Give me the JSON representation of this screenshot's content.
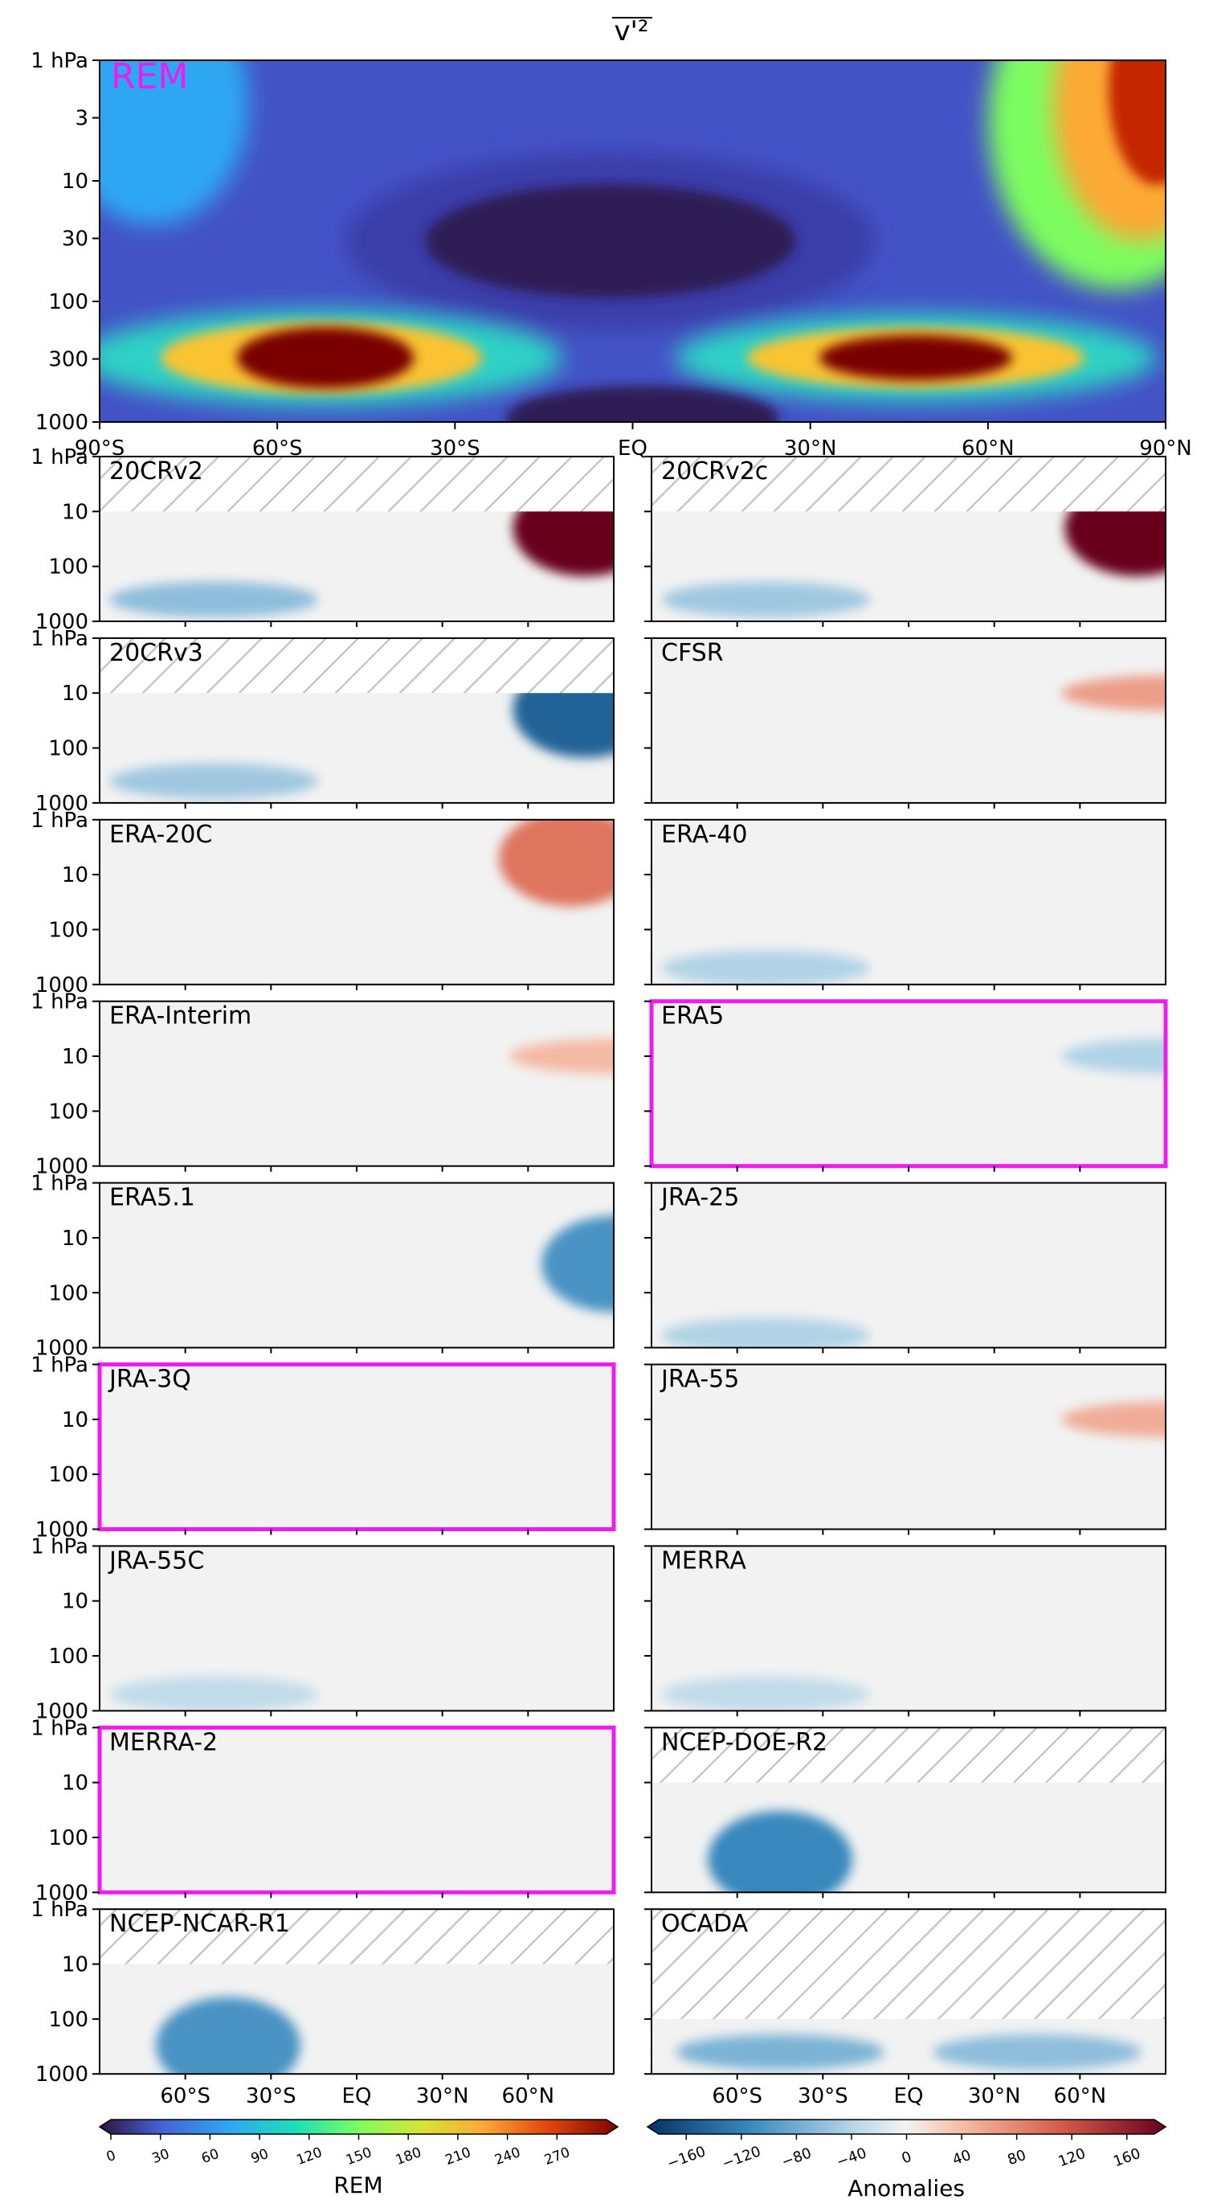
{
  "figure_title": "v'²",
  "chart_data": [
    {
      "type": "heatmap",
      "title": "REM",
      "x_ticks": [
        "90°S",
        "60°S",
        "30°S",
        "EQ",
        "30°N",
        "60°N",
        "90°N"
      ],
      "y_ticks": [
        "1 hPa",
        "3",
        "10",
        "30",
        "100",
        "300",
        "1000"
      ],
      "y_scale": "log",
      "colorbar": {
        "label": "REM",
        "ticks": [
          "0",
          "30",
          "60",
          "90",
          "120",
          "150",
          "180",
          "210",
          "240",
          "270"
        ],
        "range": [
          0,
          300
        ]
      },
      "features": [
        {
          "lat": -60,
          "pressure_hPa": 300,
          "value": 300
        },
        {
          "lat": 40,
          "pressure_hPa": 300,
          "value": 290
        },
        {
          "lat": 90,
          "pressure_hPa": 3,
          "value": 270
        },
        {
          "lat": 0,
          "pressure_hPa": 30,
          "value": 10
        }
      ]
    },
    {
      "type": "heatmap",
      "panel_type": "anomaly",
      "y_ticks": [
        "1 hPa",
        "10",
        "100",
        "1000"
      ],
      "x_ticks": [
        "60°S",
        "30°S",
        "EQ",
        "30°N",
        "60°N"
      ],
      "colorbar": {
        "label": "Anomalies",
        "ticks": [
          "−160",
          "−120",
          "−80",
          "−40",
          "0",
          "40",
          "80",
          "120",
          "160"
        ],
        "range": [
          -180,
          180
        ]
      },
      "panels": [
        {
          "name": "20CRv2",
          "highlight": false,
          "hatch_top_hPa": 10,
          "features": [
            {
              "lat": -50,
              "pressure_hPa": 400,
              "value": -60
            },
            {
              "lat": 80,
              "pressure_hPa": 20,
              "value": 180
            }
          ]
        },
        {
          "name": "20CRv2c",
          "highlight": false,
          "hatch_top_hPa": 10,
          "features": [
            {
              "lat": -50,
              "pressure_hPa": 400,
              "value": -50
            },
            {
              "lat": 80,
              "pressure_hPa": 20,
              "value": 180
            }
          ]
        },
        {
          "name": "20CRv3",
          "highlight": false,
          "hatch_top_hPa": 10,
          "features": [
            {
              "lat": -50,
              "pressure_hPa": 400,
              "value": -50
            },
            {
              "lat": 80,
              "pressure_hPa": 20,
              "value": -140
            }
          ]
        },
        {
          "name": "CFSR",
          "highlight": false,
          "hatch_top_hPa": null,
          "features": [
            {
              "lat": 90,
              "pressure_hPa": 10,
              "value": 60
            }
          ]
        },
        {
          "name": "ERA-20C",
          "highlight": false,
          "hatch_top_hPa": null,
          "features": [
            {
              "lat": 75,
              "pressure_hPa": 5,
              "value": 90
            }
          ]
        },
        {
          "name": "ERA-40",
          "highlight": false,
          "hatch_top_hPa": null,
          "features": [
            {
              "lat": -50,
              "pressure_hPa": 500,
              "value": -40
            }
          ]
        },
        {
          "name": "ERA-Interim",
          "highlight": false,
          "hatch_top_hPa": null,
          "features": [
            {
              "lat": 90,
              "pressure_hPa": 10,
              "value": 40
            }
          ]
        },
        {
          "name": "ERA5",
          "highlight": true,
          "hatch_top_hPa": null,
          "features": [
            {
              "lat": 90,
              "pressure_hPa": 10,
              "value": -40
            }
          ]
        },
        {
          "name": "ERA5.1",
          "highlight": false,
          "hatch_top_hPa": null,
          "features": [
            {
              "lat": 90,
              "pressure_hPa": 30,
              "value": -100
            }
          ]
        },
        {
          "name": "JRA-25",
          "highlight": false,
          "hatch_top_hPa": null,
          "features": [
            {
              "lat": -50,
              "pressure_hPa": 600,
              "value": -40
            }
          ]
        },
        {
          "name": "JRA-3Q",
          "highlight": true,
          "hatch_top_hPa": null,
          "features": []
        },
        {
          "name": "JRA-55",
          "highlight": false,
          "hatch_top_hPa": null,
          "features": [
            {
              "lat": 90,
              "pressure_hPa": 10,
              "value": 50
            }
          ]
        },
        {
          "name": "JRA-55C",
          "highlight": false,
          "hatch_top_hPa": null,
          "features": [
            {
              "lat": -50,
              "pressure_hPa": 500,
              "value": -30
            }
          ]
        },
        {
          "name": "MERRA",
          "highlight": false,
          "hatch_top_hPa": null,
          "features": [
            {
              "lat": -50,
              "pressure_hPa": 500,
              "value": -30
            }
          ]
        },
        {
          "name": "MERRA-2",
          "highlight": true,
          "hatch_top_hPa": null,
          "features": []
        },
        {
          "name": "NCEP-DOE-R2",
          "highlight": false,
          "hatch_top_hPa": 10,
          "features": [
            {
              "lat": -45,
              "pressure_hPa": 250,
              "value": -110
            }
          ]
        },
        {
          "name": "NCEP-NCAR-R1",
          "highlight": false,
          "hatch_top_hPa": 10,
          "features": [
            {
              "lat": -45,
              "pressure_hPa": 300,
              "value": -100
            }
          ]
        },
        {
          "name": "OCADA",
          "highlight": false,
          "hatch_top_hPa": 100,
          "features": [
            {
              "lat": -45,
              "pressure_hPa": 400,
              "value": -70
            },
            {
              "lat": 45,
              "pressure_hPa": 400,
              "value": -60
            }
          ]
        }
      ]
    }
  ],
  "colors": {
    "highlight": "#ee1cee",
    "frame": "#000000",
    "hatch": "#c6c6c6"
  }
}
